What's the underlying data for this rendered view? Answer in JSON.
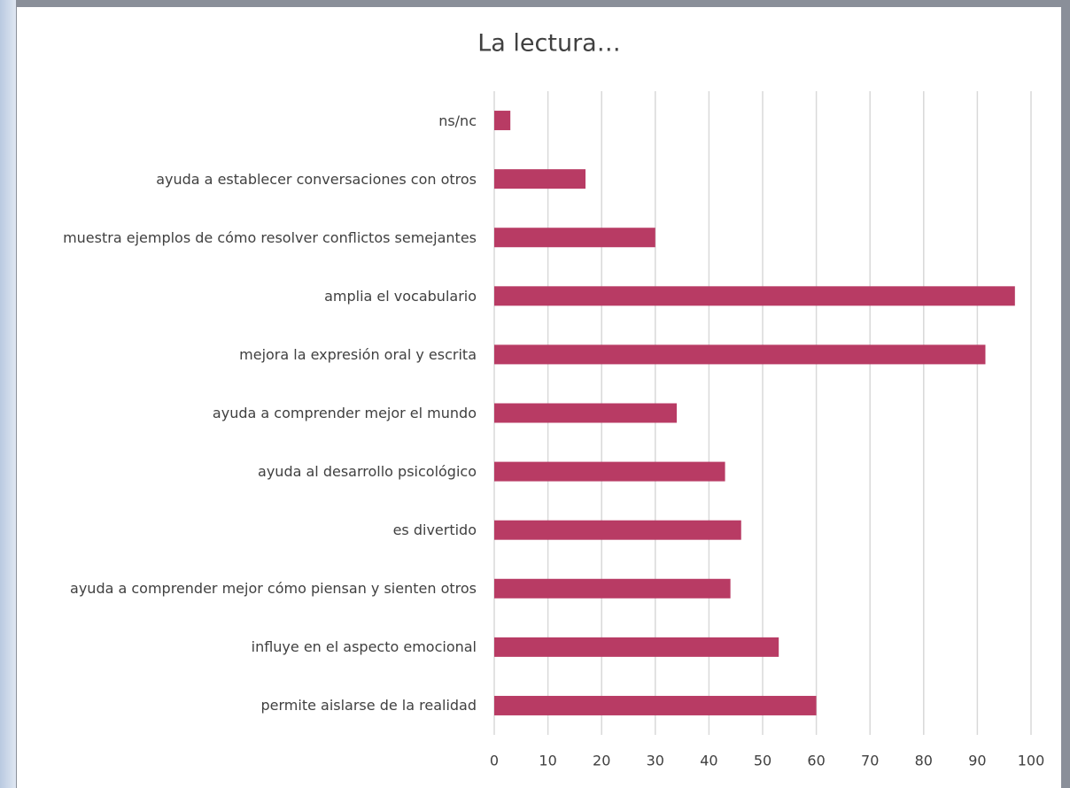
{
  "chart_data": {
    "type": "bar",
    "orientation": "horizontal",
    "title": "La lectura…",
    "categories": [
      "ns/nc",
      "ayuda a establecer conversaciones con otros",
      "muestra ejemplos de cómo resolver conflictos semejantes",
      "amplia el vocabulario",
      "mejora la expresión oral y escrita",
      "ayuda a comprender mejor el mundo",
      "ayuda al desarrollo psicológico",
      "es divertido",
      "ayuda a comprender mejor cómo piensan y sienten otros",
      "influye en el aspecto emocional",
      "permite aislarse de la realidad"
    ],
    "values": [
      3,
      17,
      30,
      97,
      91.5,
      34,
      43,
      46,
      44,
      53,
      60
    ],
    "color": "#b83b64",
    "xlim": [
      0,
      100
    ],
    "xticks": [
      0,
      10,
      20,
      30,
      40,
      50,
      60,
      70,
      80,
      90,
      100
    ],
    "grid": true
  }
}
